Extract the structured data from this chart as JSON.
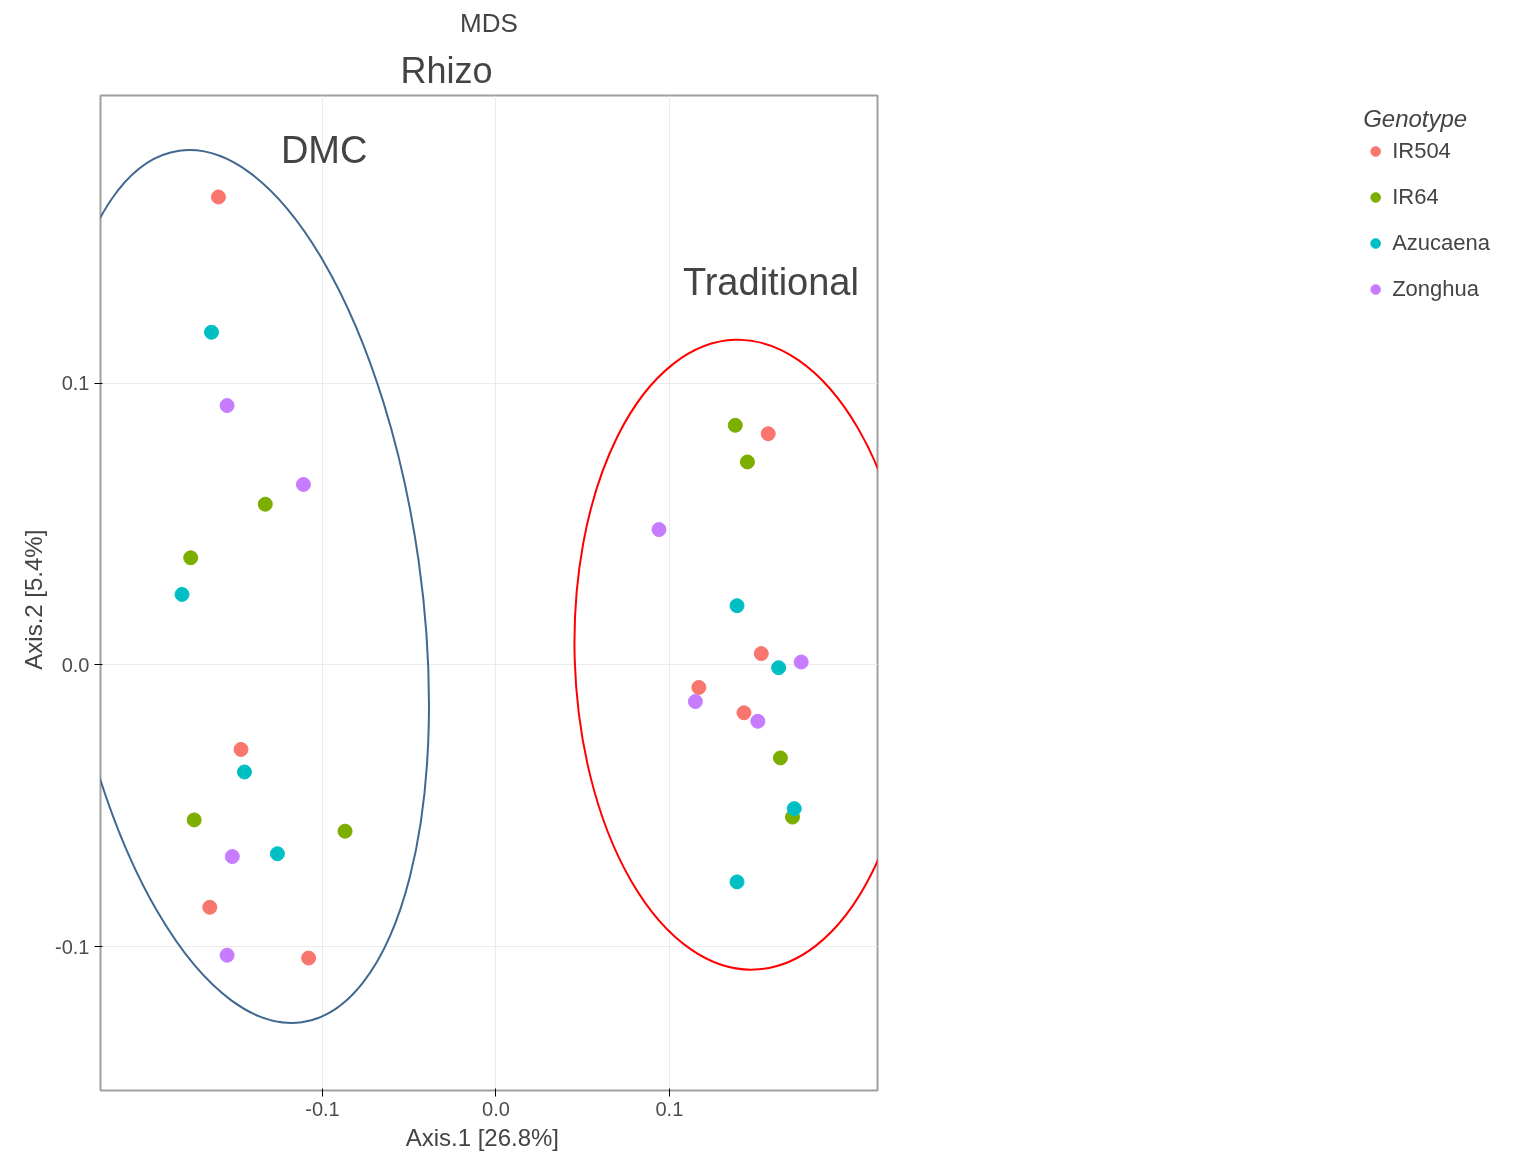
{
  "chart_data": {
    "type": "scatter",
    "title": "MDS",
    "xlabel": "Axis.1   [26.8%]",
    "ylabel": "Axis.2   [5.4%]",
    "legend_title": "Genotype",
    "annotations": [
      "Rhizo",
      "DMC",
      "Traditional"
    ],
    "xlim": [
      -0.228,
      0.22
    ],
    "ylim": [
      -0.151,
      0.202
    ],
    "xticks": [
      -0.1,
      {
        "value": 0,
        "label": "0.0"
      },
      0.1
    ],
    "yticks": [
      -0.1,
      {
        "value": 0,
        "label": "0.0"
      },
      0.1
    ],
    "grid": true,
    "legend": "right",
    "marker": "circle",
    "series": [
      {
        "name": "IR504",
        "color": "#f8766d",
        "x": [
          -0.16,
          -0.147,
          -0.165,
          -0.108,
          0.157,
          0.153,
          0.117,
          0.143
        ],
        "values": [
          0.166,
          -0.03,
          -0.086,
          -0.104,
          0.082,
          0.004,
          -0.008,
          -0.017
        ]
      },
      {
        "name": "IR64",
        "color": "#7cae00",
        "x": [
          -0.133,
          -0.176,
          -0.174,
          -0.087,
          0.138,
          0.145,
          0.164,
          0.171
        ],
        "values": [
          0.057,
          0.038,
          -0.055,
          -0.059,
          0.085,
          0.072,
          -0.033,
          -0.054
        ]
      },
      {
        "name": "Azucaena",
        "color": "#00bfc4",
        "x": [
          -0.164,
          -0.181,
          -0.145,
          -0.126,
          0.139,
          0.163,
          0.172,
          0.139
        ],
        "values": [
          0.118,
          0.025,
          -0.038,
          -0.067,
          0.021,
          -0.001,
          -0.051,
          -0.077
        ]
      },
      {
        "name": "Zonghua",
        "color": "#c77cff",
        "x": [
          -0.155,
          -0.111,
          -0.152,
          -0.155,
          0.094,
          0.176,
          0.115,
          0.151
        ],
        "values": [
          0.092,
          0.064,
          -0.068,
          -0.103,
          0.048,
          0.001,
          -0.013,
          -0.02
        ]
      }
    ]
  }
}
